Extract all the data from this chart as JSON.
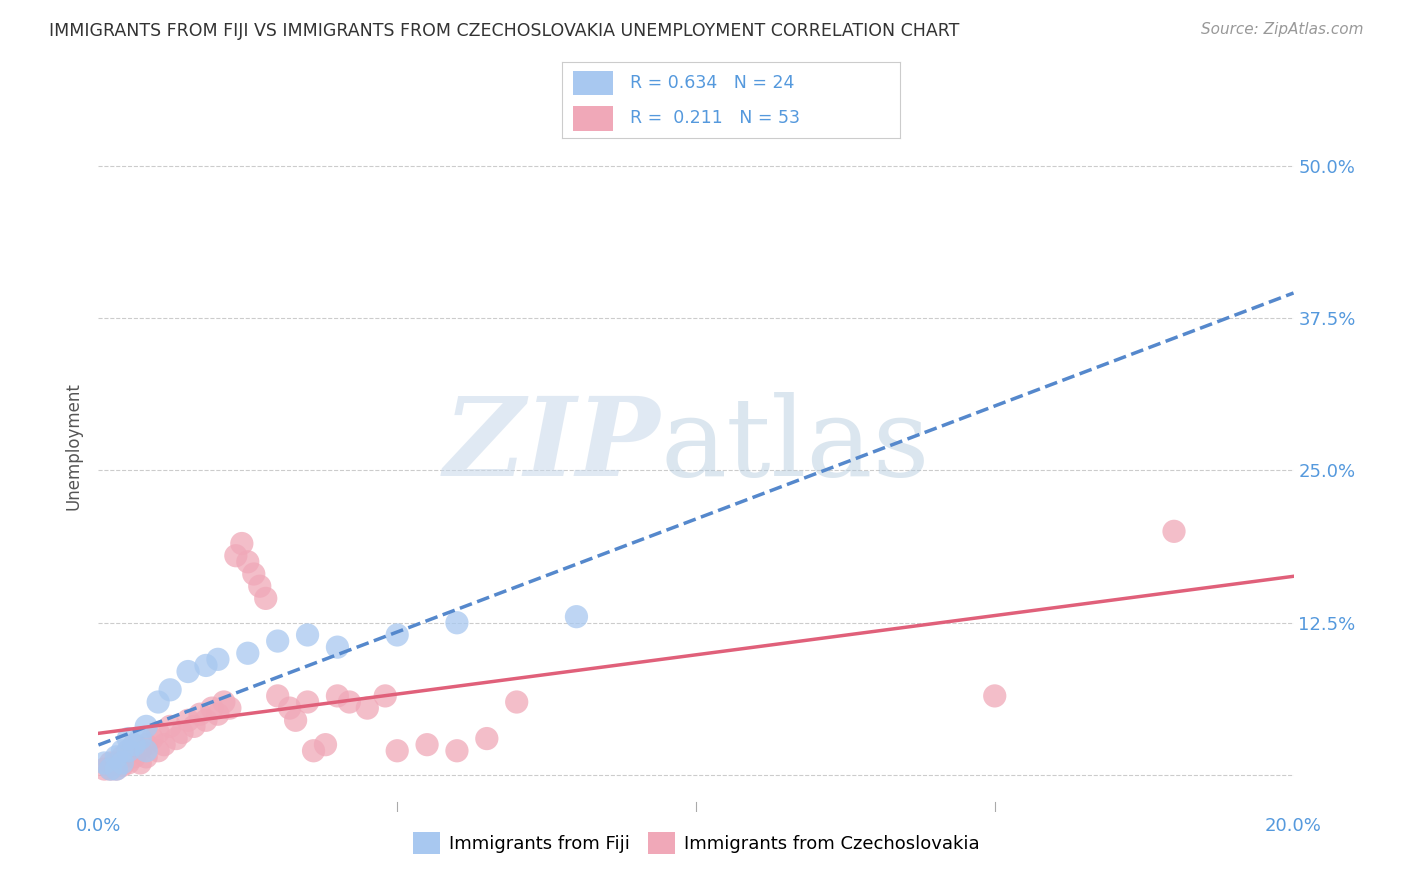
{
  "title": "IMMIGRANTS FROM FIJI VS IMMIGRANTS FROM CZECHOSLOVAKIA UNEMPLOYMENT CORRELATION CHART",
  "source": "Source: ZipAtlas.com",
  "ylabel": "Unemployment",
  "x_min": 0.0,
  "x_max": 0.2,
  "y_min": -0.03,
  "y_max": 0.57,
  "x_ticks": [
    0.0,
    0.05,
    0.1,
    0.15,
    0.2
  ],
  "y_ticks": [
    0.0,
    0.125,
    0.25,
    0.375,
    0.5
  ],
  "y_tick_labels": [
    "",
    "12.5%",
    "25.0%",
    "37.5%",
    "50.0%"
  ],
  "fiji_R": 0.634,
  "fiji_N": 24,
  "czech_R": 0.211,
  "czech_N": 53,
  "fiji_color": "#a8c8f0",
  "czech_color": "#f0a8b8",
  "fiji_line_color": "#5588cc",
  "czech_line_color": "#e0607a",
  "background_color": "#ffffff",
  "grid_color": "#cccccc",
  "tick_color": "#5599dd",
  "title_color": "#333333",
  "fiji_scatter": [
    [
      0.001,
      0.01
    ],
    [
      0.002,
      0.005
    ],
    [
      0.003,
      0.015
    ],
    [
      0.003,
      0.005
    ],
    [
      0.004,
      0.02
    ],
    [
      0.004,
      0.01
    ],
    [
      0.005,
      0.02
    ],
    [
      0.005,
      0.03
    ],
    [
      0.006,
      0.025
    ],
    [
      0.007,
      0.03
    ],
    [
      0.008,
      0.02
    ],
    [
      0.008,
      0.04
    ],
    [
      0.01,
      0.06
    ],
    [
      0.012,
      0.07
    ],
    [
      0.015,
      0.085
    ],
    [
      0.018,
      0.09
    ],
    [
      0.02,
      0.095
    ],
    [
      0.025,
      0.1
    ],
    [
      0.03,
      0.11
    ],
    [
      0.035,
      0.115
    ],
    [
      0.04,
      0.105
    ],
    [
      0.05,
      0.115
    ],
    [
      0.06,
      0.125
    ],
    [
      0.08,
      0.13
    ]
  ],
  "czech_scatter": [
    [
      0.001,
      0.005
    ],
    [
      0.002,
      0.01
    ],
    [
      0.002,
      0.005
    ],
    [
      0.003,
      0.01
    ],
    [
      0.003,
      0.005
    ],
    [
      0.004,
      0.015
    ],
    [
      0.004,
      0.008
    ],
    [
      0.005,
      0.01
    ],
    [
      0.005,
      0.02
    ],
    [
      0.006,
      0.015
    ],
    [
      0.006,
      0.025
    ],
    [
      0.007,
      0.02
    ],
    [
      0.007,
      0.01
    ],
    [
      0.008,
      0.025
    ],
    [
      0.008,
      0.015
    ],
    [
      0.009,
      0.03
    ],
    [
      0.01,
      0.02
    ],
    [
      0.01,
      0.035
    ],
    [
      0.011,
      0.025
    ],
    [
      0.012,
      0.04
    ],
    [
      0.013,
      0.03
    ],
    [
      0.014,
      0.035
    ],
    [
      0.015,
      0.045
    ],
    [
      0.016,
      0.04
    ],
    [
      0.017,
      0.05
    ],
    [
      0.018,
      0.045
    ],
    [
      0.019,
      0.055
    ],
    [
      0.02,
      0.05
    ],
    [
      0.021,
      0.06
    ],
    [
      0.022,
      0.055
    ],
    [
      0.023,
      0.18
    ],
    [
      0.024,
      0.19
    ],
    [
      0.025,
      0.175
    ],
    [
      0.026,
      0.165
    ],
    [
      0.027,
      0.155
    ],
    [
      0.028,
      0.145
    ],
    [
      0.03,
      0.065
    ],
    [
      0.032,
      0.055
    ],
    [
      0.033,
      0.045
    ],
    [
      0.035,
      0.06
    ],
    [
      0.036,
      0.02
    ],
    [
      0.038,
      0.025
    ],
    [
      0.04,
      0.065
    ],
    [
      0.042,
      0.06
    ],
    [
      0.045,
      0.055
    ],
    [
      0.048,
      0.065
    ],
    [
      0.05,
      0.02
    ],
    [
      0.055,
      0.025
    ],
    [
      0.06,
      0.02
    ],
    [
      0.065,
      0.03
    ],
    [
      0.07,
      0.06
    ],
    [
      0.15,
      0.065
    ],
    [
      0.18,
      0.2
    ]
  ]
}
